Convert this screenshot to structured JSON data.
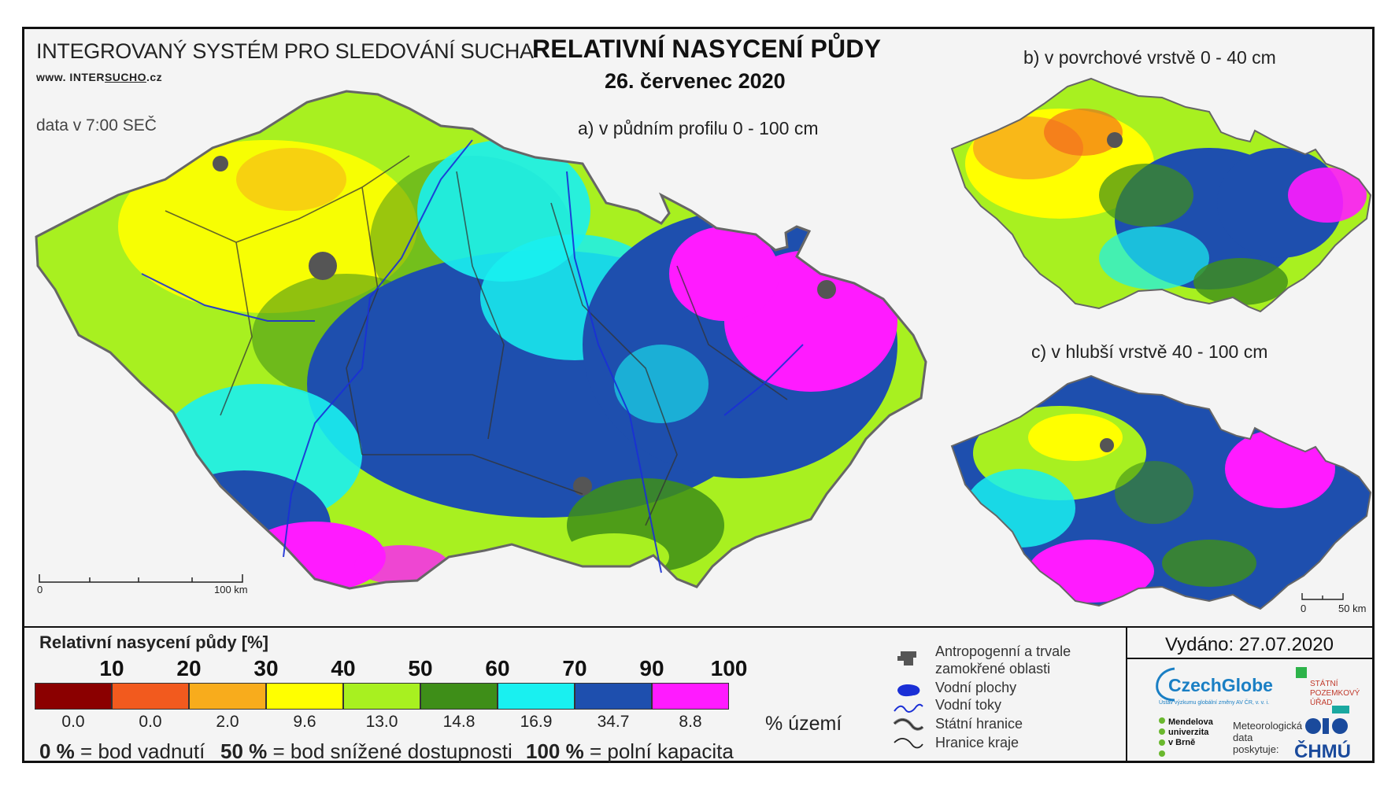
{
  "header": {
    "system_title": "INTEGROVANÝ SYSTÉM PRO SLEDOVÁNÍ SUCHA",
    "website_prefix": "www. INTER",
    "website_underlined": "SUCHO",
    "website_suffix": ".cz",
    "data_time": "data v 7:00 SEČ",
    "main_title": "RELATIVNÍ NASYCENÍ PŮDY",
    "date": "26. červenec 2020"
  },
  "maps": {
    "a": {
      "label": "a) v půdním profilu 0 - 100 cm",
      "scale_start": "0",
      "scale_end": "100 km"
    },
    "b": {
      "label": "b) v povrchové vrstvě 0 - 40 cm"
    },
    "c": {
      "label": "c) v hlubší vrstvě 40 - 100 cm",
      "scale_start": "0",
      "scale_end": "50 km"
    }
  },
  "legend": {
    "title": "Relativní nasycení půdy [%]",
    "thresholds": [
      "10",
      "20",
      "30",
      "40",
      "50",
      "60",
      "70",
      "90",
      "100"
    ],
    "classes": [
      {
        "color": "#8b0000",
        "pct": "0.0"
      },
      {
        "color": "#f25a1e",
        "pct": "0.0"
      },
      {
        "color": "#f8ac1c",
        "pct": "2.0"
      },
      {
        "color": "#ffff00",
        "pct": "9.6"
      },
      {
        "color": "#a8f020",
        "pct": "13.0"
      },
      {
        "color": "#3e8e18",
        "pct": "14.8"
      },
      {
        "color": "#19f0f0",
        "pct": "16.9"
      },
      {
        "color": "#1e4fae",
        "pct": "34.7"
      },
      {
        "color": "#ff1bff",
        "pct": "8.8"
      }
    ],
    "pct_unit": "% území",
    "footnotes": [
      {
        "bold": "0 %",
        "text": " = bod vadnutí"
      },
      {
        "bold": "50 %",
        "text": " = bod snížené dostupnosti"
      },
      {
        "bold": "100 %",
        "text": " = polní kapacita"
      }
    ]
  },
  "map_legend": {
    "anthropogenic": "Antropogenní a trvale",
    "anthropogenic2": "zamokřené oblasti",
    "water_bodies": "Vodní plochy",
    "rivers": "Vodní toky",
    "state_border": "Státní hranice",
    "region_border": "Hranice kraje"
  },
  "footer": {
    "issued": "Vydáno: 27.07.2020",
    "czechglobe": "CzechGlobe",
    "czechglobe_sub": "Ústav výzkumu globální změny AV ČR, v. v. i.",
    "spu": "STÁTNÍ POZEMKOVÝ ÚŘAD",
    "mendel": "Mendelova univerzita v Brně",
    "meteo": "Meteorologická data poskytuje:",
    "chmu": "ČHMÚ"
  }
}
